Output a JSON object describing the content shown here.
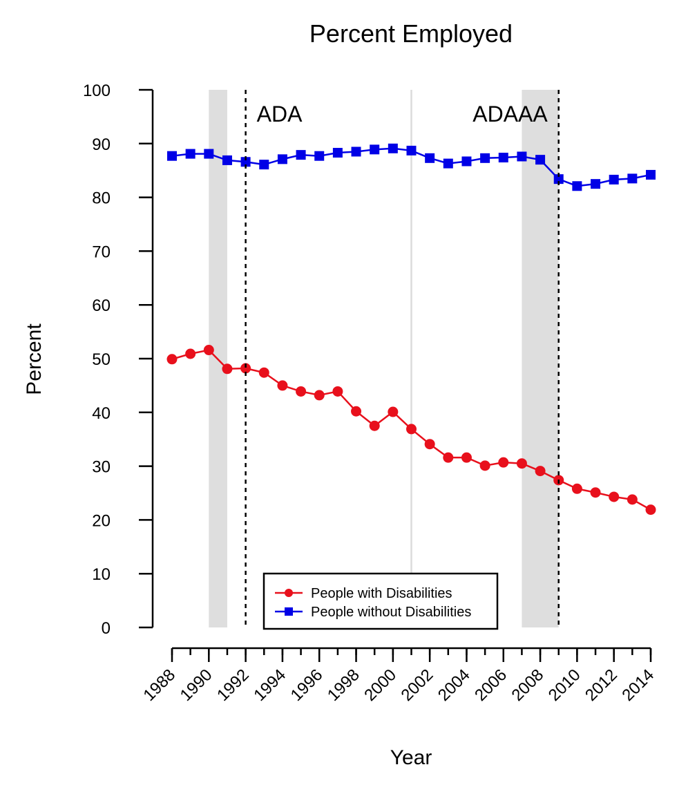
{
  "chart_data": {
    "type": "line",
    "title": "Percent Employed",
    "xlabel": "Year",
    "ylabel": "Percent",
    "xlim": [
      1988,
      2014
    ],
    "ylim": [
      0,
      100
    ],
    "x_ticks": [
      1988,
      1990,
      1992,
      1994,
      1996,
      1998,
      2000,
      2002,
      2004,
      2006,
      2008,
      2010,
      2012,
      2014
    ],
    "y_ticks": [
      0,
      10,
      20,
      30,
      40,
      50,
      60,
      70,
      80,
      90,
      100
    ],
    "grid": false,
    "legend_position": "bottom-center",
    "shaded_periods": [
      [
        1990,
        1991
      ],
      [
        2007,
        2009
      ]
    ],
    "light_reference_lines": [
      2001
    ],
    "annotations": [
      {
        "label": "ADA",
        "year": 1992
      },
      {
        "label": "ADAAA",
        "year": 2009
      }
    ],
    "x": [
      1988,
      1989,
      1990,
      1991,
      1992,
      1993,
      1994,
      1995,
      1996,
      1997,
      1998,
      1999,
      2000,
      2001,
      2002,
      2003,
      2004,
      2005,
      2006,
      2007,
      2008,
      2009,
      2010,
      2011,
      2012,
      2013,
      2014
    ],
    "series": [
      {
        "name": "People with Disabilities",
        "color": "#e8101c",
        "marker": "circle",
        "values": [
          49.9,
          50.9,
          51.6,
          48.1,
          48.2,
          47.4,
          45.0,
          43.9,
          43.2,
          43.9,
          40.2,
          37.5,
          40.1,
          36.9,
          34.1,
          31.6,
          31.6,
          30.1,
          30.7,
          30.5,
          29.1,
          27.4,
          25.8,
          25.1,
          24.3,
          23.8,
          21.9
        ]
      },
      {
        "name": "People without Disabilities",
        "color": "#0000e6",
        "marker": "square",
        "values": [
          87.7,
          88.1,
          88.1,
          86.9,
          86.6,
          86.1,
          87.1,
          87.9,
          87.7,
          88.3,
          88.5,
          88.9,
          89.1,
          88.7,
          87.3,
          86.3,
          86.7,
          87.3,
          87.4,
          87.6,
          87.0,
          83.4,
          82.1,
          82.5,
          83.3,
          83.5,
          84.2
        ]
      }
    ]
  }
}
